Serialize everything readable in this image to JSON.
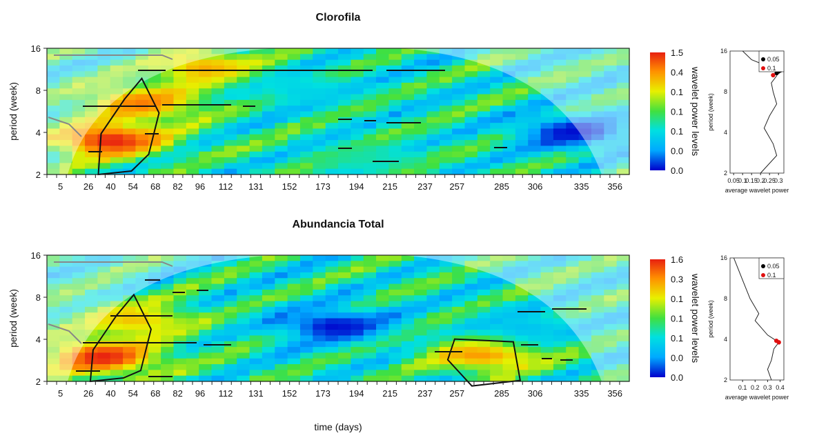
{
  "x_ticks": [
    "5",
    "26",
    "40",
    "54",
    "68",
    "82",
    "96",
    "112",
    "131",
    "152",
    "173",
    "194",
    "215",
    "237",
    "257",
    "285",
    "306",
    "335",
    "356"
  ],
  "xlabel": "time (days)",
  "chart_data": [
    {
      "type": "heatmap",
      "title": "Clorofila",
      "ylabel": "period (week)",
      "y_ticks": [
        "2",
        "4",
        "8",
        "16"
      ],
      "colorbar_label": "wavelet power levels",
      "colorbar_ticks": [
        "0.0",
        "0.0",
        "0.1",
        "0.1",
        "0.1",
        "0.4",
        "1.5"
      ],
      "hotspots": [
        {
          "day": 40,
          "period": 3.5,
          "power": 1.5
        },
        {
          "day": 60,
          "period": 6.5,
          "power": 1.3
        },
        {
          "day": 100,
          "period": 11.5,
          "power": 1.2
        },
        {
          "day": 200,
          "period": 2.6,
          "power": 0.6
        },
        {
          "day": 160,
          "period": 8,
          "power": 0.45
        },
        {
          "day": 330,
          "period": 4,
          "power": 0.02
        }
      ],
      "side_plot": {
        "type": "line",
        "xlabel": "average wavelet power",
        "ylabel": "period (week)",
        "x_ticks": [
          "0.05",
          "0.1",
          "0.15",
          "0.2",
          "0.25",
          "0.3"
        ],
        "y_ticks": [
          "2",
          "4",
          "8",
          "16"
        ],
        "legend": [
          "0.05",
          "0.1"
        ],
        "legend_colors": [
          "#000000",
          "#e01010"
        ],
        "curve": [
          {
            "power": 0.2,
            "period": 2.0
          },
          {
            "power": 0.29,
            "period": 2.7
          },
          {
            "power": 0.27,
            "period": 3.3
          },
          {
            "power": 0.22,
            "period": 4.3
          },
          {
            "power": 0.25,
            "period": 5.3
          },
          {
            "power": 0.29,
            "period": 6.5
          },
          {
            "power": 0.27,
            "period": 8.0
          },
          {
            "power": 0.26,
            "period": 9.3
          },
          {
            "power": 0.29,
            "period": 10.5
          },
          {
            "power": 0.3,
            "period": 11.5
          },
          {
            "power": 0.23,
            "period": 12.5
          },
          {
            "power": 0.15,
            "period": 13.8
          },
          {
            "power": 0.1,
            "period": 16.0
          }
        ],
        "sig_points": [
          {
            "power": 0.27,
            "period": 13.8,
            "level": "0.05"
          },
          {
            "power": 0.29,
            "period": 11.0,
            "level": "0.05"
          },
          {
            "power": 0.3,
            "period": 11.3,
            "level": "0.05"
          },
          {
            "power": 0.31,
            "period": 11.5,
            "level": "0.05"
          },
          {
            "power": 0.23,
            "period": 12.5,
            "level": "0.1"
          },
          {
            "power": 0.25,
            "period": 12.0,
            "level": "0.1"
          },
          {
            "power": 0.27,
            "period": 12.3,
            "level": "0.1"
          },
          {
            "power": 0.27,
            "period": 10.6,
            "level": "0.1"
          }
        ]
      }
    },
    {
      "type": "heatmap",
      "title": "Abundancia Total",
      "ylabel": "period (week)",
      "y_ticks": [
        "2",
        "4",
        "8",
        "16"
      ],
      "colorbar_label": "wavelet power levels",
      "colorbar_ticks": [
        "0.0",
        "0.0",
        "0.1",
        "0.1",
        "0.1",
        "0.3",
        "1.6"
      ],
      "hotspots": [
        {
          "day": 35,
          "period": 3.0,
          "power": 1.6
        },
        {
          "day": 55,
          "period": 5.5,
          "power": 1.2
        },
        {
          "day": 275,
          "period": 3.2,
          "power": 1.4
        },
        {
          "day": 300,
          "period": 4.8,
          "power": 0.4
        },
        {
          "day": 180,
          "period": 5.0,
          "power": 0.02
        }
      ],
      "side_plot": {
        "type": "line",
        "xlabel": "average wavelet power",
        "ylabel": "period (week)",
        "x_ticks": [
          "0.1",
          "0.2",
          "0.3",
          "0.4"
        ],
        "y_ticks": [
          "2",
          "4",
          "8",
          "16"
        ],
        "legend": [
          "0.05",
          "0.1"
        ],
        "legend_colors": [
          "#000000",
          "#e01010"
        ],
        "curve": [
          {
            "power": 0.33,
            "period": 2.0
          },
          {
            "power": 0.3,
            "period": 2.4
          },
          {
            "power": 0.33,
            "period": 2.8
          },
          {
            "power": 0.35,
            "period": 3.4
          },
          {
            "power": 0.39,
            "period": 3.8
          },
          {
            "power": 0.3,
            "period": 4.3
          },
          {
            "power": 0.2,
            "period": 5.5
          },
          {
            "power": 0.23,
            "period": 6.2
          },
          {
            "power": 0.16,
            "period": 8.0
          },
          {
            "power": 0.1,
            "period": 11.0
          },
          {
            "power": 0.03,
            "period": 16.0
          }
        ],
        "sig_points": [
          {
            "power": 0.37,
            "period": 3.9,
            "level": "0.1"
          },
          {
            "power": 0.39,
            "period": 3.8,
            "level": "0.1"
          }
        ]
      }
    }
  ]
}
